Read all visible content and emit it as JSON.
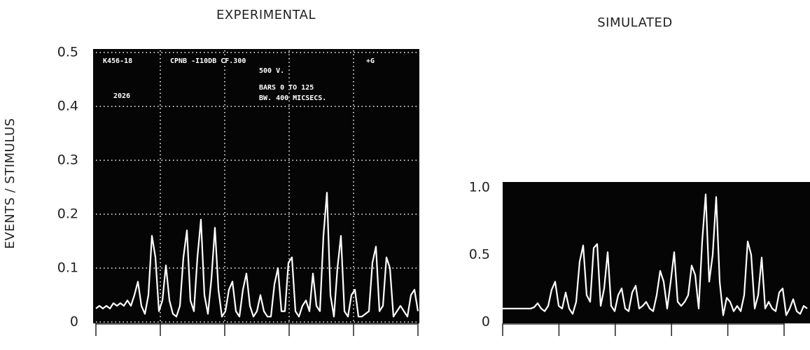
{
  "chart_data": [
    {
      "type": "line",
      "title": "EXPERIMENTAL",
      "ylabel": "EVENTS / STIMULUS",
      "annotations": [
        "K456-18",
        "CPNB -I10DB CF.300",
        "+G",
        "500 V.",
        "BARS 0 TO 125",
        "BW. 400 MICSECS.",
        "2026"
      ],
      "color": "#ffffff",
      "grid": true,
      "ylim": [
        0,
        0.5
      ],
      "yticks": [
        0,
        0.1,
        0.2,
        0.3,
        0.4,
        0.5
      ],
      "values": [
        0.025,
        0.03,
        0.025,
        0.03,
        0.025,
        0.035,
        0.03,
        0.035,
        0.03,
        0.04,
        0.03,
        0.05,
        0.075,
        0.03,
        0.015,
        0.05,
        0.16,
        0.12,
        0.02,
        0.04,
        0.105,
        0.04,
        0.015,
        0.01,
        0.03,
        0.12,
        0.17,
        0.04,
        0.02,
        0.12,
        0.19,
        0.05,
        0.015,
        0.08,
        0.175,
        0.06,
        0.01,
        0.02,
        0.06,
        0.075,
        0.02,
        0.01,
        0.06,
        0.09,
        0.03,
        0.01,
        0.02,
        0.05,
        0.02,
        0.01,
        0.01,
        0.07,
        0.1,
        0.02,
        0.02,
        0.11,
        0.12,
        0.02,
        0.01,
        0.03,
        0.04,
        0.02,
        0.09,
        0.03,
        0.02,
        0.16,
        0.24,
        0.05,
        0.01,
        0.1,
        0.16,
        0.02,
        0.01,
        0.05,
        0.06,
        0.01,
        0.01,
        0.015,
        0.02,
        0.11,
        0.14,
        0.02,
        0.03,
        0.12,
        0.1,
        0.01,
        0.02,
        0.03,
        0.02,
        0.01,
        0.05,
        0.06,
        0.02
      ]
    },
    {
      "type": "line",
      "title": "SIMULATED",
      "color": "#ffffff",
      "grid": false,
      "ylim": [
        0,
        1
      ],
      "yticks": [
        0,
        0.5,
        {
          "value": 1,
          "label": "1.0"
        }
      ],
      "values": [
        0.1,
        0.1,
        0.1,
        0.1,
        0.1,
        0.1,
        0.1,
        0.1,
        0.1,
        0.11,
        0.14,
        0.1,
        0.08,
        0.12,
        0.24,
        0.3,
        0.12,
        0.1,
        0.22,
        0.1,
        0.06,
        0.15,
        0.45,
        0.57,
        0.2,
        0.15,
        0.55,
        0.58,
        0.12,
        0.25,
        0.52,
        0.12,
        0.08,
        0.2,
        0.25,
        0.1,
        0.08,
        0.22,
        0.27,
        0.1,
        0.12,
        0.15,
        0.1,
        0.08,
        0.2,
        0.38,
        0.3,
        0.1,
        0.3,
        0.52,
        0.15,
        0.12,
        0.15,
        0.2,
        0.42,
        0.35,
        0.1,
        0.6,
        0.95,
        0.3,
        0.5,
        0.93,
        0.3,
        0.05,
        0.18,
        0.15,
        0.08,
        0.12,
        0.08,
        0.2,
        0.6,
        0.5,
        0.1,
        0.2,
        0.48,
        0.1,
        0.15,
        0.1,
        0.08,
        0.22,
        0.25,
        0.05,
        0.1,
        0.17,
        0.08,
        0.06,
        0.12,
        0.1
      ]
    }
  ]
}
